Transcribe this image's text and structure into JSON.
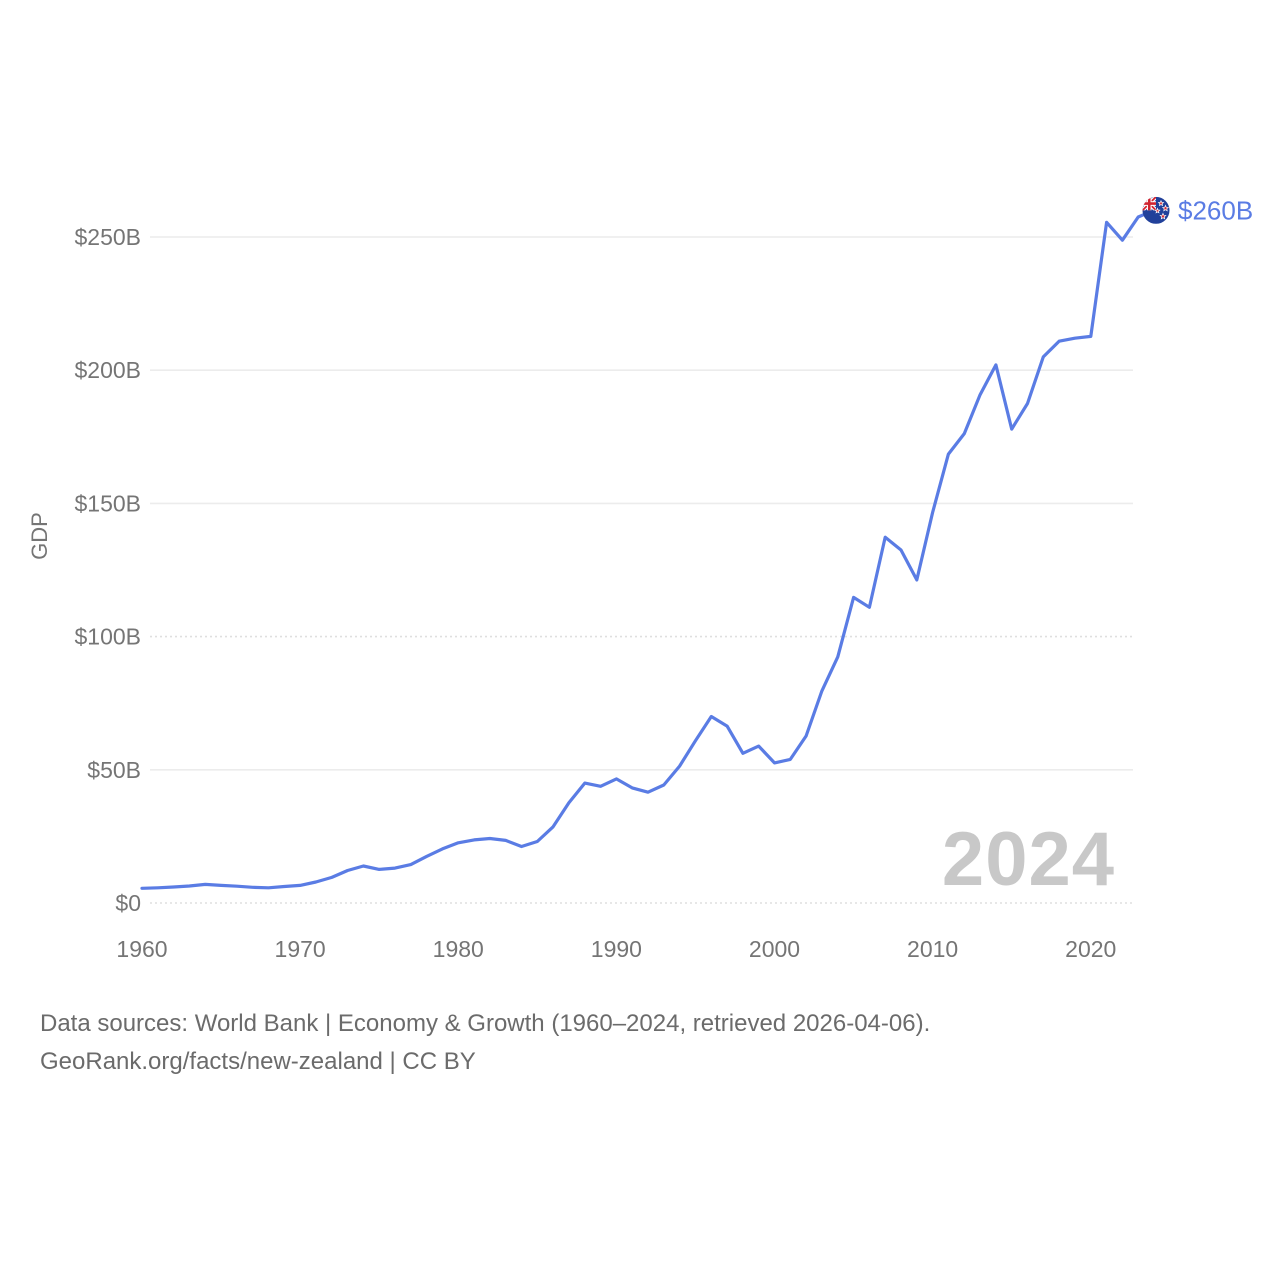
{
  "chart_data": {
    "type": "line",
    "title": "",
    "xlabel": "",
    "ylabel": "GDP",
    "series": [
      {
        "name": "New Zealand GDP",
        "x": [
          1960,
          1961,
          1962,
          1963,
          1964,
          1965,
          1966,
          1967,
          1968,
          1969,
          1970,
          1971,
          1972,
          1973,
          1974,
          1975,
          1976,
          1977,
          1978,
          1979,
          1980,
          1981,
          1982,
          1983,
          1984,
          1985,
          1986,
          1987,
          1988,
          1989,
          1990,
          1991,
          1992,
          1993,
          1994,
          1995,
          1996,
          1997,
          1998,
          1999,
          2000,
          2001,
          2002,
          2003,
          2004,
          2005,
          2006,
          2007,
          2008,
          2009,
          2010,
          2011,
          2012,
          2013,
          2014,
          2015,
          2016,
          2017,
          2018,
          2019,
          2020,
          2021,
          2022,
          2023,
          2024
        ],
        "values": [
          5.5,
          5.7,
          6.0,
          6.4,
          7.0,
          6.6,
          6.3,
          5.9,
          5.7,
          6.2,
          6.6,
          7.9,
          9.6,
          12.2,
          13.9,
          12.6,
          13.1,
          14.4,
          17.5,
          20.3,
          22.6,
          23.7,
          24.2,
          23.5,
          21.2,
          23.1,
          28.6,
          37.6,
          45.0,
          43.8,
          46.6,
          43.2,
          41.6,
          44.3,
          51.4,
          60.9,
          70.0,
          66.4,
          56.2,
          58.9,
          52.6,
          53.9,
          62.7,
          79.6,
          92.4,
          114.7,
          111.0,
          137.3,
          132.5,
          121.3,
          146.6,
          168.5,
          176.2,
          190.8,
          202.0,
          177.9,
          187.5,
          205.0,
          210.9,
          212.0,
          212.7,
          255.5,
          248.8,
          257.5,
          260.0
        ]
      }
    ],
    "xlim": [
      1960,
      2024
    ],
    "ylim": [
      0,
      265
    ],
    "x_ticks": [
      "1960",
      "1970",
      "1980",
      "1990",
      "2000",
      "2010",
      "2020"
    ],
    "y_ticks": [
      {
        "value": 0,
        "label": "$0",
        "style": "dotted"
      },
      {
        "value": 50,
        "label": "$50B",
        "style": "solid"
      },
      {
        "value": 100,
        "label": "$100B",
        "style": "dotted"
      },
      {
        "value": 150,
        "label": "$150B",
        "style": "solid"
      },
      {
        "value": 200,
        "label": "$200B",
        "style": "solid"
      },
      {
        "value": 250,
        "label": "$250B",
        "style": "solid"
      }
    ],
    "grid": "horizontal",
    "legend": "none",
    "endpoint": {
      "year": 2024,
      "value_label": "$260B",
      "marker": "new-zealand-flag-icon"
    },
    "watermark": "2024"
  },
  "footer": {
    "line1": "Data sources: World Bank | Economy & Growth (1960–2024, retrieved 2026-04-06).",
    "line2": "GeoRank.org/facts/new-zealand | CC BY"
  },
  "colors": {
    "line": "#5a7ce4",
    "endpoint_label": "#5a7ce4",
    "watermark": "#c8c8c8",
    "grid_solid": "#ececec",
    "grid_dotted": "#dfdfdf",
    "axis_text": "#757575",
    "footer_text": "#6b6b6b",
    "flag_blue": "#21409a",
    "flag_red": "#d1232f",
    "flag_white": "#ffffff"
  }
}
